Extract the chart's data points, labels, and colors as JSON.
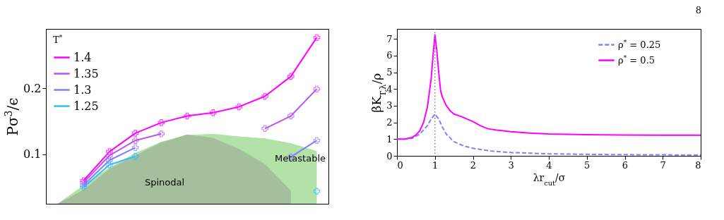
{
  "chart_data": [
    {
      "type": "line",
      "ylabel": "Pσ$^{3}$/ϵ",
      "legend_title": "T$^{*}$",
      "legend": "top left",
      "tick_labels": "y",
      "categories": [
        null,
        null,
        null,
        null,
        null,
        null,
        null,
        null,
        null,
        null,
        null
      ],
      "ylim": [
        0.025,
        0.29
      ],
      "yticks": [
        0.1,
        0.2
      ],
      "series": [
        {
          "type": "area",
          "color": "#b3e2a8",
          "values": [
            0.025,
            0.053,
            0.08,
            0.102,
            0.119,
            0.129,
            0.131,
            0.127,
            0.124,
            0.117,
            0.105
          ]
        },
        {
          "type": "area",
          "color": "#a3bf9c",
          "values": [
            0.025,
            0.046,
            0.078,
            0.098,
            0.118,
            0.13,
            0.125,
            0.108,
            0.085,
            0.045,
            null
          ]
        },
        {
          "name": "1.4",
          "color": "#ff00ff",
          "marker": "cross",
          "values": [
            null,
            0.06,
            0.104,
            0.132,
            0.148,
            0.158,
            0.163,
            0.172,
            0.188,
            0.218,
            0.277
          ]
        },
        {
          "name": "1.35",
          "color": "#bb55ee",
          "marker": "cross",
          "values": [
            null,
            0.057,
            0.098,
            0.121,
            0.131,
            null,
            null,
            null,
            0.139,
            0.158,
            0.199
          ]
        },
        {
          "name": "1.3",
          "color": "#7f7fff",
          "marker": "cross",
          "values": [
            null,
            0.053,
            0.091,
            0.11,
            null,
            null,
            null,
            null,
            null,
            0.096,
            0.121
          ]
        },
        {
          "name": "1.25",
          "color": "#33bbff",
          "marker": "cross",
          "values": [
            null,
            0.05,
            0.084,
            0.097,
            null,
            null,
            null,
            null,
            null,
            null,
            0.044
          ]
        }
      ],
      "annotations": [
        "Spinodal",
        "Metastable"
      ]
    },
    {
      "type": "line",
      "xlabel": "λr$_{cut}$/σ",
      "ylabel": "βK$_{T,λ}$/ρ",
      "legend": "top right",
      "xlim": [
        0,
        8
      ],
      "ylim": [
        0,
        7.6
      ],
      "xticks": [
        0,
        1,
        2,
        3,
        4,
        5,
        6,
        7,
        8
      ],
      "yticks": [
        0,
        1,
        2,
        3,
        4,
        5,
        6,
        7
      ],
      "series": [
        {
          "name": "ρ$^{*}$ = 0.25",
          "color": "#7f7fff",
          "line_style": "dashed",
          "x": [
            0,
            0.2,
            0.4,
            0.6,
            0.8,
            0.9,
            1.0,
            1.1,
            1.2,
            1.3,
            1.5,
            1.75,
            2,
            2.5,
            3,
            4,
            5,
            6,
            8
          ],
          "values": [
            1,
            1.0,
            1.05,
            1.3,
            1.8,
            2.2,
            2.5,
            2.2,
            1.7,
            1.3,
            0.85,
            0.6,
            0.45,
            0.28,
            0.2,
            0.12,
            0.09,
            0.07,
            0.05
          ]
        },
        {
          "name": "ρ$^{*}$ = 0.5",
          "color": "#ff00ff",
          "line_style": "solid",
          "x": [
            0,
            0.2,
            0.4,
            0.5,
            0.6,
            0.7,
            0.8,
            0.9,
            0.95,
            1.0,
            1.05,
            1.1,
            1.15,
            1.2,
            1.3,
            1.4,
            1.5,
            1.7,
            1.9,
            2.0,
            2.2,
            2.4,
            2.6,
            3,
            3.5,
            4,
            5,
            6,
            7,
            8
          ],
          "values": [
            1.0,
            1.0,
            1.1,
            1.25,
            1.5,
            2.0,
            2.9,
            4.6,
            6.0,
            7.25,
            6.3,
            5.0,
            3.9,
            3.5,
            3.0,
            2.7,
            2.5,
            2.35,
            2.15,
            2.05,
            1.8,
            1.62,
            1.55,
            1.45,
            1.36,
            1.31,
            1.27,
            1.25,
            1.24,
            1.23
          ]
        }
      ],
      "ref_lines": [
        {
          "axis": "x",
          "value": 1,
          "color": "#808080",
          "line_style": "dotted"
        }
      ],
      "annotations": [
        "8"
      ]
    }
  ]
}
